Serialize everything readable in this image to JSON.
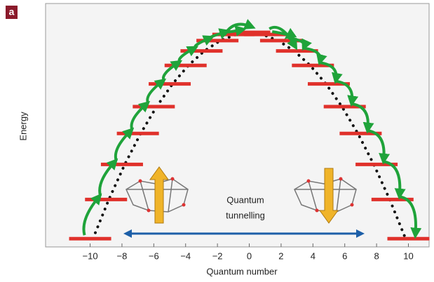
{
  "badge": "a",
  "chart_data": {
    "type": "levels",
    "y_label": "Energy",
    "x_label": "Quantum number",
    "annotation": [
      "Quantum",
      "tunnelling"
    ],
    "x": [
      -10,
      -9,
      -8,
      -7,
      -6,
      -5,
      -4,
      -3,
      -2,
      -1,
      0,
      1,
      2,
      3,
      4,
      5,
      6,
      7,
      8,
      9,
      10
    ],
    "values": [
      -100,
      -81,
      -64,
      -49,
      -36,
      -25,
      -16,
      -9,
      -4,
      -1,
      0,
      -1,
      -4,
      -9,
      -16,
      -25,
      -36,
      -49,
      -64,
      -81,
      -100
    ],
    "color": "#e0312b",
    "xlim": [
      -12.8,
      11.3
    ],
    "ylim": [
      -104,
      14
    ],
    "xticks": [
      {
        "value": -10,
        "label": "−10"
      },
      {
        "value": -8,
        "label": "−8"
      },
      {
        "value": -6,
        "label": "−6"
      },
      {
        "value": -4,
        "label": "−4"
      },
      {
        "value": -2,
        "label": "−2"
      },
      0,
      2,
      4,
      6,
      8,
      10
    ]
  }
}
